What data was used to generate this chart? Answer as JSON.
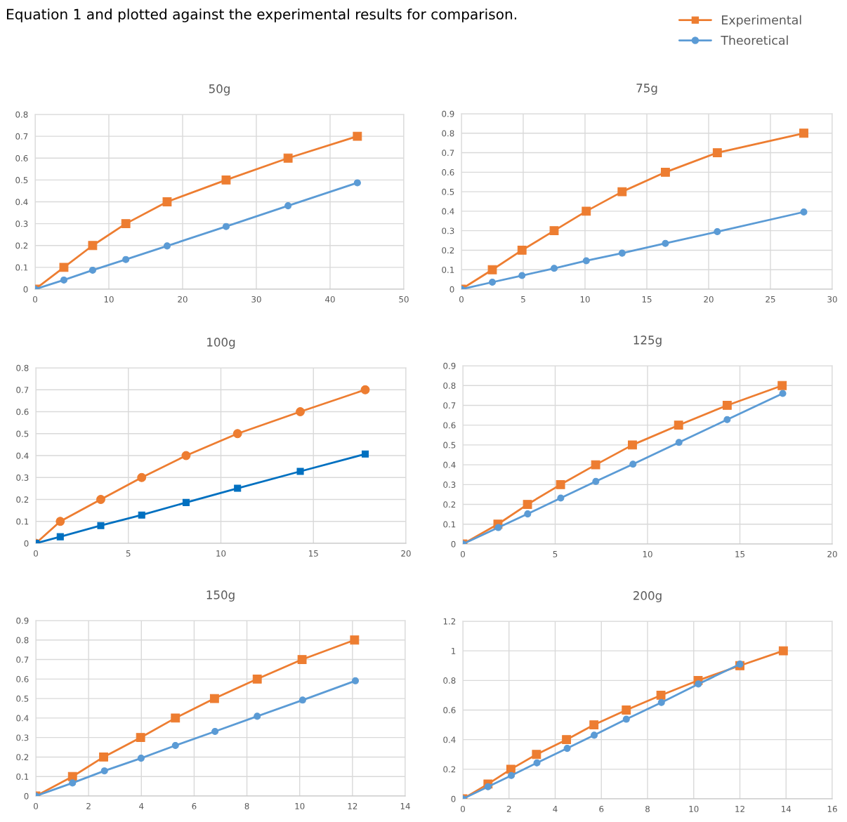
{
  "chart_data": [
    {
      "type": "line",
      "title": "50g",
      "annotations": [
        "Equation 1 and plotted against the experimental results for comparison."
      ],
      "legend": "top right",
      "grid": true,
      "xlim": [
        0,
        50
      ],
      "xticks": [
        0,
        10,
        20,
        30,
        40,
        50
      ],
      "ylim": [
        0,
        0.8
      ],
      "yticks": [
        0,
        0.1,
        0.2,
        0.3,
        0.4,
        0.5,
        0.6,
        0.7,
        0.8
      ],
      "series": [
        {
          "name": "Experimental",
          "color": "#ed7d31",
          "marker": "square",
          "x": [
            0,
            3.9,
            7.8,
            12.3,
            17.9,
            25.9,
            34.3,
            43.7
          ],
          "values": [
            0,
            0.1,
            0.2,
            0.3,
            0.4,
            0.5,
            0.6,
            0.7
          ]
        },
        {
          "name": "Theoretical",
          "color": "#5b9bd5",
          "marker": "circle",
          "x": [
            0,
            3.9,
            7.8,
            12.3,
            17.9,
            25.9,
            34.3,
            43.7
          ],
          "values": [
            0,
            0.042,
            0.087,
            0.136,
            0.198,
            0.287,
            0.382,
            0.487
          ]
        }
      ]
    },
    {
      "type": "line",
      "title": "75g",
      "grid": true,
      "xlim": [
        0,
        30
      ],
      "xticks": [
        0,
        5,
        10,
        15,
        20,
        25,
        30
      ],
      "ylim": [
        0,
        0.9
      ],
      "yticks": [
        0,
        0.1,
        0.2,
        0.3,
        0.4,
        0.5,
        0.6,
        0.7,
        0.8,
        0.9
      ],
      "series": [
        {
          "color": "#ed7d31",
          "marker": "square",
          "x": [
            0,
            2.5,
            4.9,
            7.5,
            10.1,
            13.0,
            16.5,
            20.7,
            27.7
          ],
          "values": [
            0,
            0.1,
            0.2,
            0.3,
            0.4,
            0.5,
            0.6,
            0.7,
            0.8
          ]
        },
        {
          "color": "#5b9bd5",
          "marker": "circle",
          "x": [
            0,
            2.5,
            4.9,
            7.5,
            10.1,
            13.0,
            16.5,
            20.7,
            27.7
          ],
          "values": [
            0,
            0.036,
            0.07,
            0.107,
            0.146,
            0.185,
            0.235,
            0.295,
            0.396
          ]
        }
      ]
    },
    {
      "type": "line",
      "title": "100g",
      "grid": true,
      "xlim": [
        0,
        20
      ],
      "xticks": [
        0,
        5,
        10,
        15,
        20
      ],
      "ylim": [
        0,
        0.8
      ],
      "yticks": [
        0,
        0.1,
        0.2,
        0.3,
        0.4,
        0.5,
        0.6,
        0.7,
        0.8
      ],
      "series": [
        {
          "color": "#ed7d31",
          "marker": "circle",
          "x": [
            0,
            1.32,
            3.51,
            5.72,
            8.12,
            10.9,
            14.29,
            17.8
          ],
          "values": [
            0,
            0.1,
            0.2,
            0.3,
            0.4,
            0.5,
            0.6,
            0.7
          ]
        },
        {
          "color": "#0070c0",
          "marker": "square",
          "x": [
            0,
            1.32,
            3.51,
            5.72,
            8.12,
            10.9,
            14.29,
            17.8
          ],
          "values": [
            0,
            0.03,
            0.081,
            0.129,
            0.186,
            0.251,
            0.328,
            0.407
          ]
        }
      ]
    },
    {
      "type": "line",
      "title": "125g",
      "grid": true,
      "xlim": [
        0,
        20
      ],
      "xticks": [
        0,
        5,
        10,
        15,
        20
      ],
      "ylim": [
        0,
        0.9
      ],
      "yticks": [
        0,
        0.1,
        0.2,
        0.3,
        0.4,
        0.5,
        0.6,
        0.7,
        0.8,
        0.9
      ],
      "series": [
        {
          "color": "#ed7d31",
          "marker": "square",
          "x": [
            0,
            1.9,
            3.5,
            5.29,
            7.19,
            9.18,
            11.68,
            14.31,
            17.29
          ],
          "values": [
            0,
            0.1,
            0.2,
            0.3,
            0.4,
            0.5,
            0.6,
            0.7,
            0.8
          ]
        },
        {
          "color": "#5b9bd5",
          "marker": "circle",
          "x": [
            0,
            1.92,
            3.51,
            5.3,
            7.2,
            9.21,
            11.7,
            14.31,
            17.32
          ],
          "values": [
            0,
            0.083,
            0.152,
            0.232,
            0.316,
            0.403,
            0.513,
            0.628,
            0.76
          ]
        }
      ]
    },
    {
      "type": "line",
      "title": "150g",
      "grid": true,
      "xlim": [
        0,
        14
      ],
      "xticks": [
        0,
        2,
        4,
        6,
        8,
        10,
        12,
        14
      ],
      "ylim": [
        0,
        0.9
      ],
      "yticks": [
        0,
        0.1,
        0.2,
        0.3,
        0.4,
        0.5,
        0.6,
        0.7,
        0.8,
        0.9
      ],
      "series": [
        {
          "color": "#ed7d31",
          "marker": "square",
          "x": [
            0,
            1.39,
            2.57,
            3.97,
            5.29,
            6.77,
            8.39,
            10.09,
            12.08
          ],
          "values": [
            0,
            0.1,
            0.2,
            0.3,
            0.4,
            0.5,
            0.6,
            0.7,
            0.8
          ]
        },
        {
          "color": "#5b9bd5",
          "marker": "circle",
          "x": [
            0,
            1.39,
            2.6,
            3.99,
            5.29,
            6.79,
            8.39,
            10.11,
            12.11
          ],
          "values": [
            0,
            0.067,
            0.129,
            0.194,
            0.259,
            0.331,
            0.409,
            0.492,
            0.591
          ]
        }
      ]
    },
    {
      "type": "line",
      "title": "200g",
      "grid": true,
      "xlim": [
        0,
        16
      ],
      "xticks": [
        0,
        2,
        4,
        6,
        8,
        10,
        12,
        14,
        16
      ],
      "ylim": [
        0,
        1.2
      ],
      "yticks": [
        0,
        0.2,
        0.4,
        0.6,
        0.8,
        1,
        1.2
      ],
      "series": [
        {
          "color": "#ed7d31",
          "marker": "square",
          "x": [
            0,
            1.09,
            2.08,
            3.19,
            4.49,
            5.68,
            7.08,
            8.58,
            10.19,
            12.0,
            13.88
          ],
          "values": [
            0,
            0.1,
            0.2,
            0.3,
            0.4,
            0.5,
            0.6,
            0.7,
            0.8,
            0.9,
            1.0
          ]
        },
        {
          "color": "#5b9bd5",
          "marker": "circle",
          "x": [
            0,
            1.09,
            2.1,
            3.21,
            4.52,
            5.69,
            7.08,
            8.6,
            10.2,
            12.0
          ],
          "values": [
            0,
            0.082,
            0.158,
            0.243,
            0.341,
            0.43,
            0.538,
            0.651,
            0.776,
            0.91
          ]
        }
      ]
    }
  ]
}
